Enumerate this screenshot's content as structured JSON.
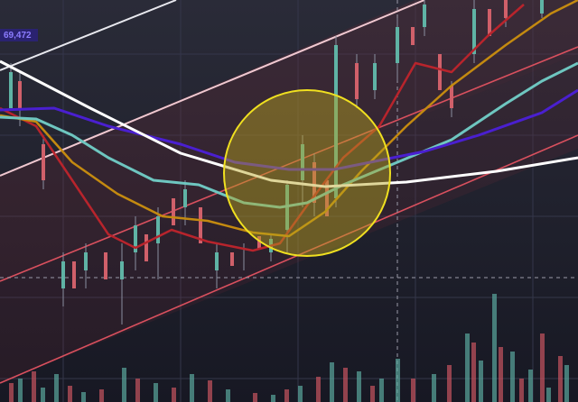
{
  "price_label": "69,472"
}
